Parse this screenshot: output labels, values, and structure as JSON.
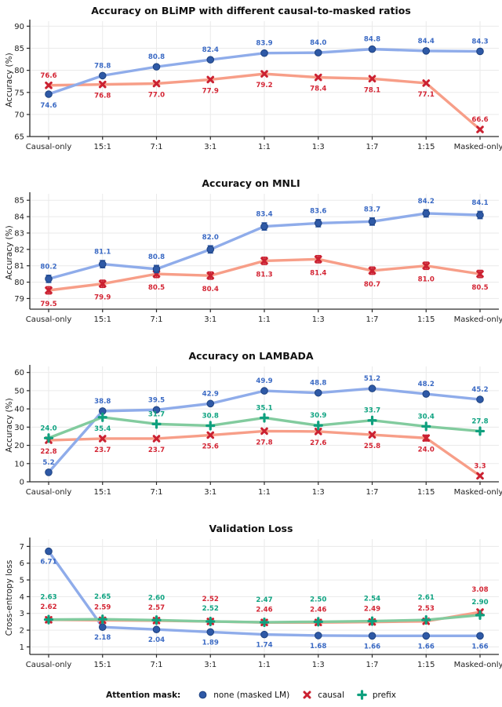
{
  "legend": {
    "title": "Attention mask:",
    "items": [
      {
        "key": "none",
        "label": "none (masked LM)",
        "marker": "circle"
      },
      {
        "key": "causal",
        "label": "causal",
        "marker": "x"
      },
      {
        "key": "prefix",
        "label": "prefix",
        "marker": "plus"
      }
    ]
  },
  "colors": {
    "none": {
      "line": "#8FACEA",
      "marker": "#2E59A6",
      "edge": "#1E4280",
      "label": "#3B6AC4"
    },
    "causal": {
      "line": "#F79E88",
      "marker": "#CB2131",
      "edge": "#CB2131",
      "label": "#D32534"
    },
    "prefix": {
      "line": "#82CB9E",
      "marker": "#0FA07E",
      "edge": "#0FA07E",
      "label": "#0FA381"
    },
    "axis_text": "#1f1f1f",
    "grid": "#eaeaea",
    "spine": "#2b2b2b"
  },
  "categories": [
    "Causal-only",
    "15:1",
    "7:1",
    "3:1",
    "1:1",
    "1:3",
    "1:7",
    "1:15",
    "Masked-only"
  ],
  "chart_data": [
    {
      "type": "line",
      "title": "Accuracy on BLiMP with different causal-to-masked ratios",
      "ylabel": "Accuracy (%)",
      "ylim": [
        65,
        90.6
      ],
      "yticks": [
        65,
        70,
        75,
        80,
        85,
        90
      ],
      "label_decimals": 1,
      "above_dy": -10,
      "below_dy": 17,
      "categories": [
        "Causal-only",
        "15:1",
        "7:1",
        "3:1",
        "1:1",
        "1:3",
        "1:7",
        "1:15",
        "Masked-only"
      ],
      "series": [
        {
          "key": "causal",
          "name": "causal",
          "marker": "x",
          "values": [
            76.6,
            76.8,
            77.0,
            77.9,
            79.2,
            78.4,
            78.1,
            77.1,
            66.6
          ],
          "label_side": [
            "a",
            "b",
            "b",
            "b",
            "b",
            "b",
            "b",
            "b",
            "a"
          ]
        },
        {
          "key": "none",
          "name": "none (masked LM)",
          "marker": "circle",
          "values": [
            74.6,
            78.8,
            80.8,
            82.4,
            83.9,
            84.0,
            84.8,
            84.4,
            84.3
          ],
          "label_side": [
            "b",
            "a",
            "a",
            "a",
            "a",
            "a",
            "a",
            "a",
            "a"
          ]
        }
      ]
    },
    {
      "type": "line",
      "title": "Accuracy on MNLI",
      "ylabel": "Accuracy (%)",
      "ylim": [
        78.35,
        85.25
      ],
      "yticks": [
        79,
        80,
        81,
        82,
        83,
        84,
        85
      ],
      "label_decimals": 1,
      "above_dy": -13,
      "below_dy": 20,
      "categories": [
        "Causal-only",
        "15:1",
        "7:1",
        "3:1",
        "1:1",
        "1:3",
        "1:7",
        "1:15",
        "Masked-only"
      ],
      "series": [
        {
          "key": "causal",
          "name": "causal",
          "marker": "x",
          "err": 0.22,
          "values": [
            79.5,
            79.9,
            80.5,
            80.4,
            81.3,
            81.4,
            80.7,
            81.0,
            80.5
          ],
          "label_side": [
            "b",
            "b",
            "b",
            "b",
            "b",
            "b",
            "b",
            "b",
            "b"
          ]
        },
        {
          "key": "none",
          "name": "none (masked LM)",
          "marker": "circle",
          "err": 0.22,
          "values": [
            80.2,
            81.1,
            80.8,
            82.0,
            83.4,
            83.6,
            83.7,
            84.2,
            84.1
          ],
          "label_side": [
            "a",
            "a",
            "a",
            "a",
            "a",
            "a",
            "a",
            "a",
            "a"
          ]
        }
      ]
    },
    {
      "type": "line",
      "title": "Accuracy on LAMBADA",
      "ylabel": "Accuracy (%)",
      "ylim": [
        0,
        62
      ],
      "yticks": [
        0,
        10,
        20,
        30,
        40,
        50,
        60
      ],
      "label_decimals": 1,
      "above_dy": -10,
      "below_dy": 17,
      "categories": [
        "Causal-only",
        "15:1",
        "7:1",
        "3:1",
        "1:1",
        "1:3",
        "1:7",
        "1:15",
        "Masked-only"
      ],
      "series": [
        {
          "key": "causal",
          "name": "causal",
          "marker": "x",
          "err": [
            0,
            0,
            0,
            0,
            0,
            0,
            0,
            1.6,
            0
          ],
          "values": [
            22.8,
            23.7,
            23.7,
            25.6,
            27.8,
            27.6,
            25.8,
            24.0,
            3.3
          ],
          "label_side": [
            "b",
            "b",
            "b",
            "b",
            "b",
            "b",
            "b",
            "b",
            "a"
          ]
        },
        {
          "key": "none",
          "name": "none (masked LM)",
          "marker": "circle",
          "values": [
            5.2,
            38.8,
            39.5,
            42.9,
            49.9,
            48.8,
            51.2,
            48.2,
            45.2
          ],
          "label_side": [
            "a",
            "a",
            "a",
            "a",
            "a",
            "a",
            "a",
            "a",
            "a"
          ]
        },
        {
          "key": "prefix",
          "name": "prefix",
          "marker": "plus",
          "values": [
            24.0,
            35.4,
            31.7,
            30.8,
            35.1,
            30.9,
            33.7,
            30.4,
            27.8
          ],
          "label_side": [
            "a",
            "b",
            "a",
            "a",
            "a",
            "a",
            "a",
            "a",
            "a"
          ]
        }
      ]
    },
    {
      "type": "line",
      "title": "Validation Loss",
      "ylabel": "Cross-entropy loss",
      "ylim": [
        0.55,
        7.3
      ],
      "yticks": [
        1,
        2,
        3,
        4,
        5,
        6,
        7
      ],
      "label_decimals": 2,
      "above_dy": -10,
      "below_dy": 16,
      "categories": [
        "Causal-only",
        "15:1",
        "7:1",
        "3:1",
        "1:1",
        "1:3",
        "1:7",
        "1:15",
        "Masked-only"
      ],
      "series": [
        {
          "key": "none",
          "name": "none (masked LM)",
          "marker": "circle",
          "values": [
            6.71,
            2.18,
            2.04,
            1.89,
            1.74,
            1.68,
            1.66,
            1.66,
            1.66
          ],
          "label_side": [
            "b",
            "b",
            "b",
            "b",
            "b",
            "b",
            "b",
            "b",
            "b"
          ]
        },
        {
          "key": "causal",
          "name": "causal",
          "marker": "x",
          "values": [
            2.62,
            2.59,
            2.57,
            2.52,
            2.46,
            2.46,
            2.49,
            2.53,
            3.08
          ],
          "label_dy": [
            -14,
            -14,
            -14,
            -26,
            -14,
            -14,
            -14,
            -14,
            -26
          ]
        },
        {
          "key": "prefix",
          "name": "prefix",
          "marker": "plus",
          "values": [
            2.63,
            2.65,
            2.6,
            2.52,
            2.47,
            2.5,
            2.54,
            2.61,
            2.9
          ],
          "label_dy": [
            -26,
            -26,
            -26,
            -14,
            -26,
            -26,
            -26,
            -26,
            -14
          ]
        }
      ]
    }
  ]
}
